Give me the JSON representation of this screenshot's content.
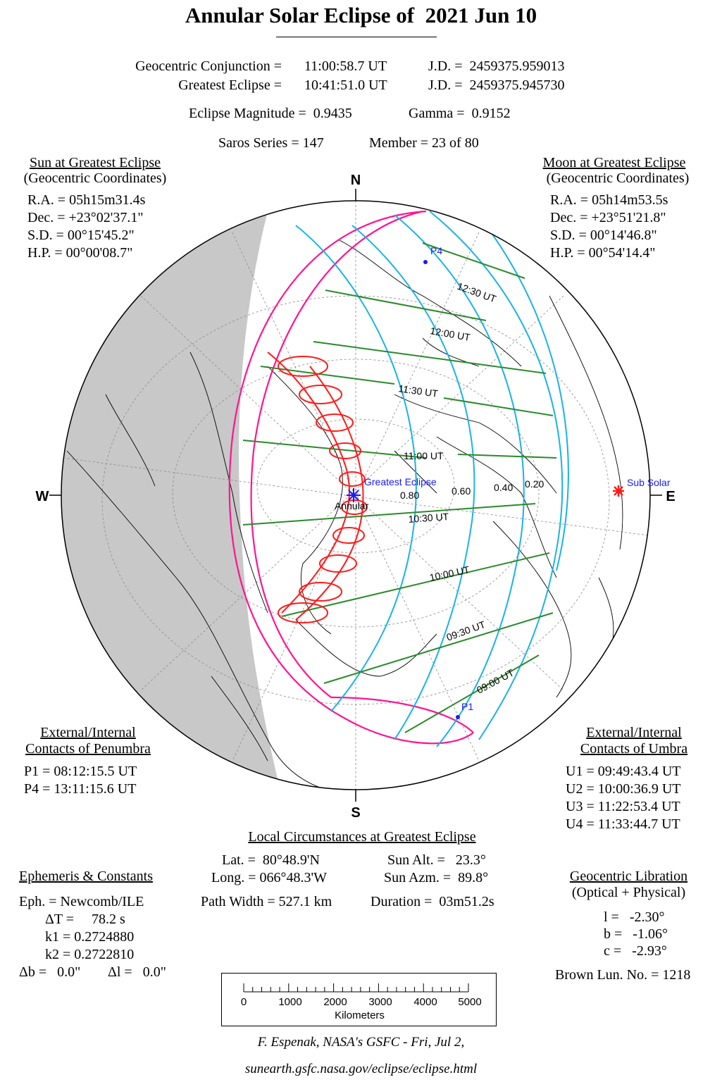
{
  "title": "Annular Solar Eclipse of  2021 Jun 10",
  "header": {
    "conj_label": "Geocentric Conjunction =",
    "conj_time": "11:00:58.7 UT",
    "conj_jd": "J.D. =  2459375.959013",
    "ge_label": "Greatest Eclipse =",
    "ge_time": "10:41:51.0 UT",
    "ge_jd": "J.D. =  2459375.945730",
    "magnitude": "Eclipse Magnitude =  0.9435",
    "gamma": "Gamma =  0.9152",
    "saros": "Saros Series = 147",
    "member": "Member = 23 of 80"
  },
  "sun": {
    "title": "Sun at Greatest Eclipse",
    "subtitle": "(Geocentric Coordinates)",
    "ra": "R.A. = 05h15m31.4s",
    "dec": "Dec. = +23°02'37.1\"",
    "sd": "S.D. = 00°15'45.2\"",
    "hp": "H.P. = 00°00'08.7\""
  },
  "moon": {
    "title": "Moon at Greatest Eclipse",
    "subtitle": "(Geocentric Coordinates)",
    "ra": "R.A. = 05h14m53.5s",
    "dec": "Dec. = +23°51'21.8\"",
    "sd": "S.D. = 00°14'46.8\"",
    "hp": "H.P. = 00°54'14.4\""
  },
  "compass": {
    "n": "N",
    "s": "S",
    "w": "W",
    "e": "E"
  },
  "map_labels": {
    "p4": "P4",
    "p1": "P1",
    "t1230": "12:30 UT",
    "t1200": "12:00 UT",
    "t1130": "11:30 UT",
    "t1100": "11:00 UT",
    "t1030": "10:30 UT",
    "t1000": "10:00 UT",
    "t0930": "09:30 UT",
    "t0900": "09:00 UT",
    "greatest": "Greatest Eclipse",
    "annular": "Annular",
    "sub_solar": "Sub Solar",
    "m080": "0.80",
    "m060": "0.60",
    "m040": "0.40",
    "m020": "0.20"
  },
  "penumbra": {
    "title1": "External/Internal",
    "title2": "Contacts of Penumbra",
    "p1": "P1 = 08:12:15.5 UT",
    "p4": "P4 = 13:11:15.6 UT"
  },
  "umbra": {
    "title1": "External/Internal",
    "title2": "Contacts of Umbra",
    "u1": "U1 = 09:49:43.4 UT",
    "u2": "U2 = 10:00:36.9 UT",
    "u3": "U3 = 11:22:53.4 UT",
    "u4": "U4 = 11:33:44.7 UT"
  },
  "local": {
    "title": "Local Circumstances at Greatest Eclipse",
    "lat": "Lat. =  80°48.9'N",
    "long": "Long. = 066°48.3'W",
    "path": "Path Width = 527.1 km",
    "alt": "Sun Alt. =   23.3°",
    "azm": "Sun Azm. =  89.8°",
    "duration": "Duration =  03m51.2s"
  },
  "ephemeris": {
    "title": "Ephemeris & Constants",
    "eph": "Eph. = Newcomb/ILE",
    "dt": "ΔT =     78.2 s",
    "k1": "k1 = 0.2724880",
    "k2": "k2 = 0.2722810",
    "db": "Δb =   0.0\"",
    "dl": "Δl =   0.0\""
  },
  "libration": {
    "title": "Geocentric Libration",
    "subtitle": "(Optical + Physical)",
    "l": "l =   -2.30°",
    "b": "b =   -1.06°",
    "c": "c =   -2.93°",
    "brown": "Brown Lun. No. = 1218"
  },
  "scale": {
    "ticks": [
      "0",
      "1000",
      "2000",
      "3000",
      "4000",
      "5000"
    ],
    "label": "Kilometers"
  },
  "credit": {
    "line1": "F. Espenak, NASA's GSFC - Fri, Jul 2,",
    "line2": "sunearth.gsfc.nasa.gov/eclipse/eclipse.html"
  },
  "colors": {
    "night": "#c8c8c8",
    "penumbra": "#ff1493",
    "magnitude": "#1ab2e8",
    "time_lines": "#2a8a2a",
    "path": "#ff1a1a",
    "label_blue": "#1a1aff"
  }
}
